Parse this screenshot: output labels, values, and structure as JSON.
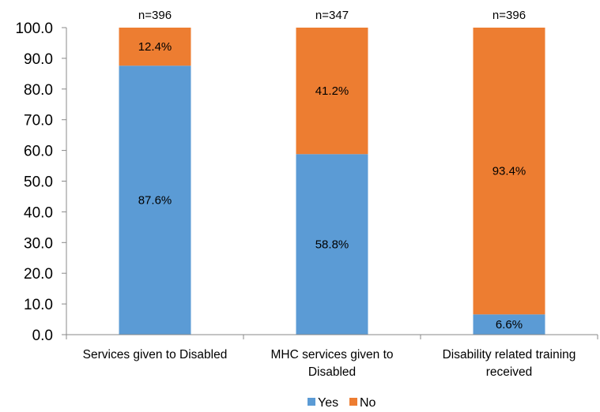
{
  "chart_data": {
    "type": "bar",
    "stacked": true,
    "categories": [
      [
        "Services given to Disabled"
      ],
      [
        "MHC services given to",
        "Disabled"
      ],
      [
        "Disability related training",
        "received"
      ]
    ],
    "n_labels": [
      "n=396",
      "n=347",
      "n=396"
    ],
    "series": [
      {
        "name": "Yes",
        "color": "#5B9BD5",
        "values": [
          87.6,
          58.8,
          6.6
        ],
        "labels": [
          "87.6%",
          "58.8%",
          "6.6%"
        ]
      },
      {
        "name": "No",
        "color": "#ED7D31",
        "values": [
          12.4,
          41.2,
          93.4
        ],
        "labels": [
          "12.4%",
          "41.2%",
          "93.4%"
        ]
      }
    ],
    "yticks": [
      "0.0",
      "10.0",
      "20.0",
      "30.0",
      "40.0",
      "50.0",
      "60.0",
      "70.0",
      "80.0",
      "90.0",
      "100.0"
    ],
    "ylim": [
      0,
      100
    ],
    "grid": false,
    "legend_position": "bottom"
  }
}
